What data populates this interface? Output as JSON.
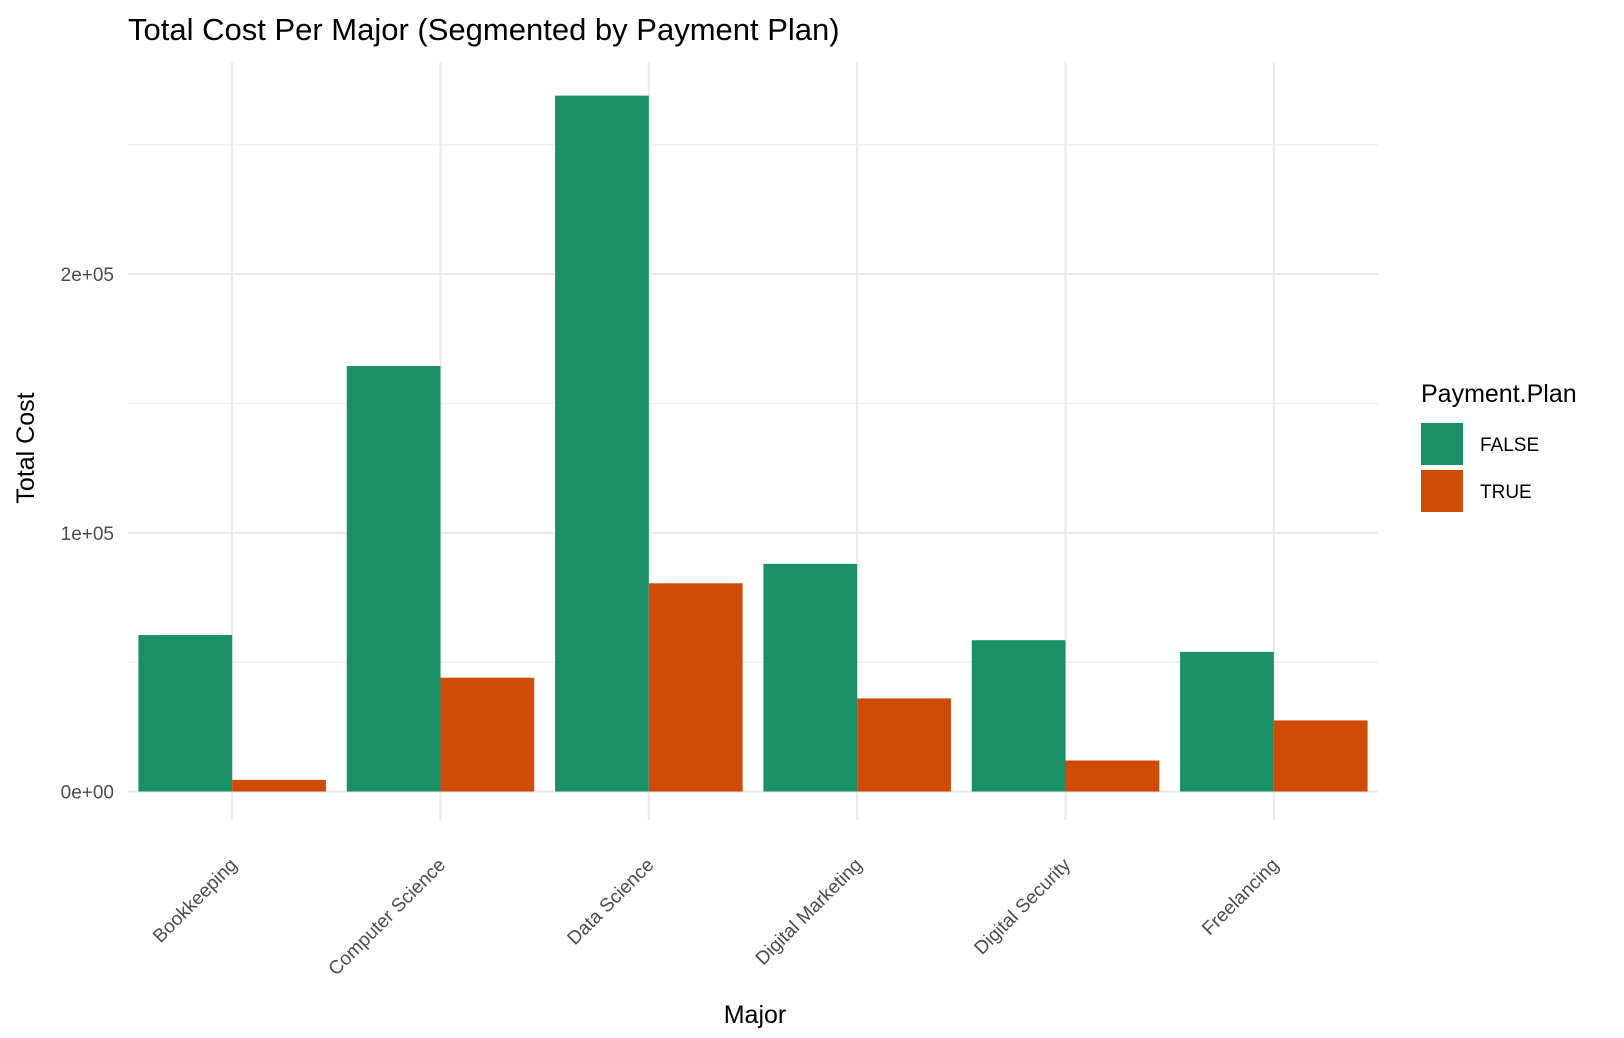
{
  "chart_data": {
    "type": "bar",
    "title": "Total Cost Per Major (Segmented by Payment Plan)",
    "xlabel": "Major",
    "ylabel": "Total Cost",
    "categories": [
      "Bookkeeping",
      "Computer Science",
      "Data Science",
      "Digital Marketing",
      "Digital Security",
      "Freelancing"
    ],
    "series": [
      {
        "name": "FALSE",
        "color": "#1b9066",
        "values": [
          60500,
          164500,
          269000,
          88000,
          58500,
          54000
        ]
      },
      {
        "name": "TRUE",
        "color": "#d04a08",
        "values": [
          4500,
          44000,
          80500,
          36000,
          12000,
          27500
        ]
      }
    ],
    "ylim": [
      -11000,
      282000
    ],
    "y_ticks": [
      0,
      100000,
      200000
    ],
    "y_tick_labels": [
      "0e+00",
      "1e+05",
      "2e+05"
    ],
    "y_minor_ticks": [
      50000,
      150000,
      250000
    ],
    "grid": true,
    "legend": {
      "title": "Payment.Plan",
      "position": "right"
    }
  }
}
